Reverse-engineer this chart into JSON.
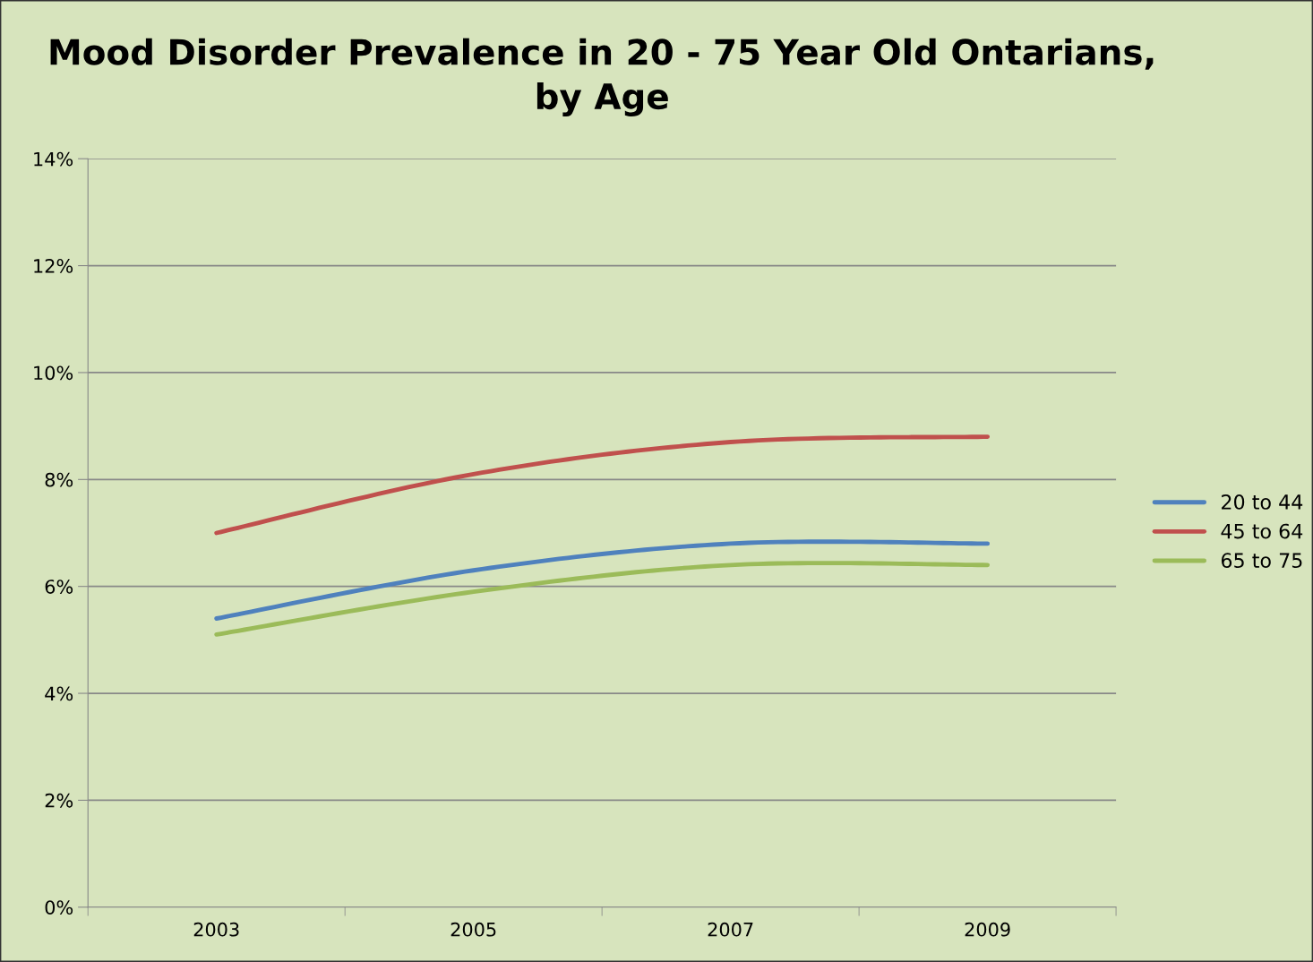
{
  "chart_data": {
    "type": "line",
    "title": "Mood Disorder Prevalence in 20 - 75 Year Old Ontarians,\nby Age",
    "categories": [
      "2003",
      "2005",
      "2007",
      "2009"
    ],
    "series": [
      {
        "name": "20 to 44",
        "color": "#4f81bd",
        "values": [
          5.4,
          6.3,
          6.8,
          6.8
        ]
      },
      {
        "name": "45 to 64",
        "color": "#c0504d",
        "values": [
          7.0,
          8.1,
          8.7,
          8.8
        ]
      },
      {
        "name": "65 to 75",
        "color": "#9bbb59",
        "values": [
          5.1,
          5.9,
          6.4,
          6.4
        ]
      }
    ],
    "ylim": [
      0,
      14
    ],
    "yticks": [
      {
        "value": 0,
        "label": "0%"
      },
      {
        "value": 2,
        "label": "2%"
      },
      {
        "value": 4,
        "label": "4%"
      },
      {
        "value": 6,
        "label": "6%"
      },
      {
        "value": 8,
        "label": "8%"
      },
      {
        "value": 10,
        "label": "10%"
      },
      {
        "value": 12,
        "label": "12%"
      },
      {
        "value": 14,
        "label": "14%"
      }
    ],
    "grid": "y",
    "legend": "right",
    "marker": "none",
    "line_style": "solid"
  }
}
